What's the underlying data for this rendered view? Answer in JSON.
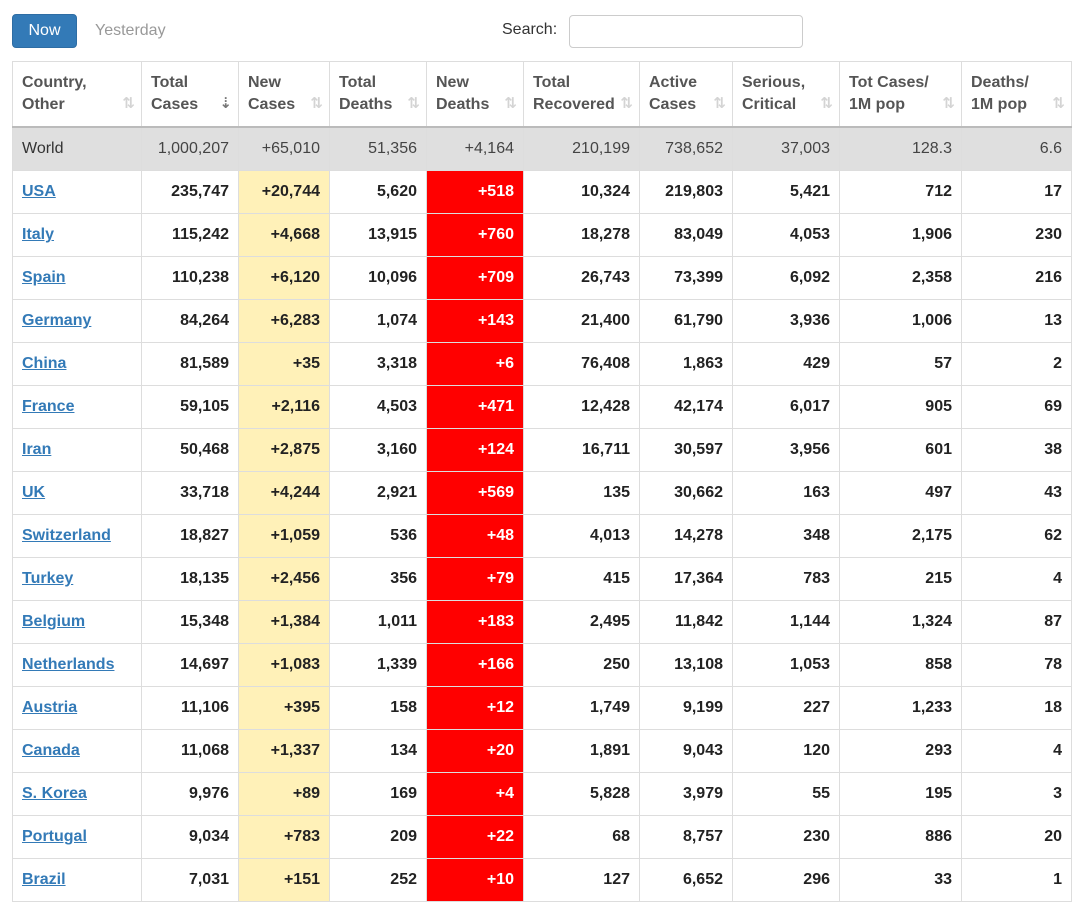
{
  "tabs": {
    "now": "Now",
    "yesterday": "Yesterday"
  },
  "search": {
    "label": "Search:",
    "value": "",
    "placeholder": ""
  },
  "colors": {
    "primary": "#337ab7",
    "new_cases_bg": "#fff1b8",
    "new_deaths_bg": "#ff0000",
    "world_row_bg": "#dfdfdf"
  },
  "columns": [
    {
      "line1": "Country,",
      "line2": "Other"
    },
    {
      "line1": "Total",
      "line2": "Cases"
    },
    {
      "line1": "New",
      "line2": "Cases"
    },
    {
      "line1": "Total",
      "line2": "Deaths"
    },
    {
      "line1": "New",
      "line2": "Deaths"
    },
    {
      "line1": "Total",
      "line2": "Recovered"
    },
    {
      "line1": "Active",
      "line2": "Cases"
    },
    {
      "line1": "Serious,",
      "line2": "Critical"
    },
    {
      "line1": "Tot Cases/",
      "line2": "1M pop"
    },
    {
      "line1": "Deaths/",
      "line2": "1M pop"
    }
  ],
  "sort_icons": {
    "default": "⇅",
    "active": "⇣"
  },
  "rows": [
    [
      "World",
      "1,000,207",
      "+65,010",
      "51,356",
      "+4,164",
      "210,199",
      "738,652",
      "37,003",
      "128.3",
      "6.6"
    ],
    [
      "USA",
      "235,747",
      "+20,744",
      "5,620",
      "+518",
      "10,324",
      "219,803",
      "5,421",
      "712",
      "17"
    ],
    [
      "Italy",
      "115,242",
      "+4,668",
      "13,915",
      "+760",
      "18,278",
      "83,049",
      "4,053",
      "1,906",
      "230"
    ],
    [
      "Spain",
      "110,238",
      "+6,120",
      "10,096",
      "+709",
      "26,743",
      "73,399",
      "6,092",
      "2,358",
      "216"
    ],
    [
      "Germany",
      "84,264",
      "+6,283",
      "1,074",
      "+143",
      "21,400",
      "61,790",
      "3,936",
      "1,006",
      "13"
    ],
    [
      "China",
      "81,589",
      "+35",
      "3,318",
      "+6",
      "76,408",
      "1,863",
      "429",
      "57",
      "2"
    ],
    [
      "France",
      "59,105",
      "+2,116",
      "4,503",
      "+471",
      "12,428",
      "42,174",
      "6,017",
      "905",
      "69"
    ],
    [
      "Iran",
      "50,468",
      "+2,875",
      "3,160",
      "+124",
      "16,711",
      "30,597",
      "3,956",
      "601",
      "38"
    ],
    [
      "UK",
      "33,718",
      "+4,244",
      "2,921",
      "+569",
      "135",
      "30,662",
      "163",
      "497",
      "43"
    ],
    [
      "Switzerland",
      "18,827",
      "+1,059",
      "536",
      "+48",
      "4,013",
      "14,278",
      "348",
      "2,175",
      "62"
    ],
    [
      "Turkey",
      "18,135",
      "+2,456",
      "356",
      "+79",
      "415",
      "17,364",
      "783",
      "215",
      "4"
    ],
    [
      "Belgium",
      "15,348",
      "+1,384",
      "1,011",
      "+183",
      "2,495",
      "11,842",
      "1,144",
      "1,324",
      "87"
    ],
    [
      "Netherlands",
      "14,697",
      "+1,083",
      "1,339",
      "+166",
      "250",
      "13,108",
      "1,053",
      "858",
      "78"
    ],
    [
      "Austria",
      "11,106",
      "+395",
      "158",
      "+12",
      "1,749",
      "9,199",
      "227",
      "1,233",
      "18"
    ],
    [
      "Canada",
      "11,068",
      "+1,337",
      "134",
      "+20",
      "1,891",
      "9,043",
      "120",
      "293",
      "4"
    ],
    [
      "S. Korea",
      "9,976",
      "+89",
      "169",
      "+4",
      "5,828",
      "3,979",
      "55",
      "195",
      "3"
    ],
    [
      "Portugal",
      "9,034",
      "+783",
      "209",
      "+22",
      "68",
      "8,757",
      "230",
      "886",
      "20"
    ],
    [
      "Brazil",
      "7,031",
      "+151",
      "252",
      "+10",
      "127",
      "6,652",
      "296",
      "33",
      "1"
    ]
  ]
}
